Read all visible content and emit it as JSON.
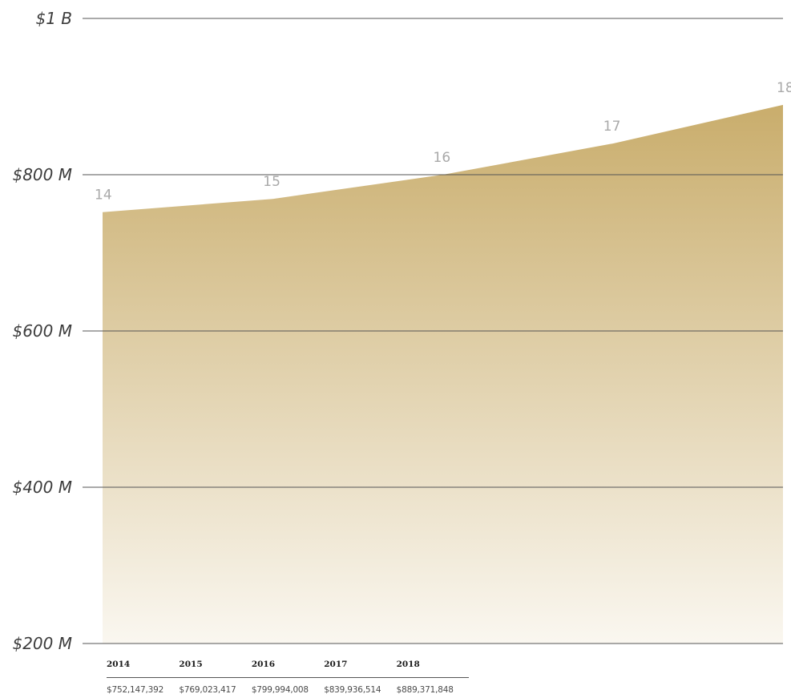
{
  "chart_data": {
    "type": "area",
    "y_tick_labels": [
      "$200 M",
      "$400 M",
      "$600 M",
      "$800 M",
      "$1 B"
    ],
    "y_tick_values": [
      200000000,
      400000000,
      600000000,
      800000000,
      1000000000
    ],
    "ylim": [
      200000000,
      1000000000
    ],
    "grid": true,
    "x": [
      2014,
      2015,
      2016,
      2017,
      2018
    ],
    "point_labels": [
      "14",
      "15",
      "16",
      "17",
      "18"
    ],
    "values": [
      752147392,
      769023417,
      799994008,
      839936514,
      889371848
    ],
    "colors": {
      "fill_top": "#c9ad6c",
      "fill_bottom": "#faf7f0",
      "grid": "#555555",
      "point_label": "#a9a9a9"
    },
    "table": {
      "years": [
        "2014",
        "2015",
        "2016",
        "2017",
        "2018"
      ],
      "amounts": [
        "$752,147,392",
        "$769,023,417",
        "$799,994,008",
        "$839,936,514",
        "$889,371,848"
      ]
    }
  }
}
